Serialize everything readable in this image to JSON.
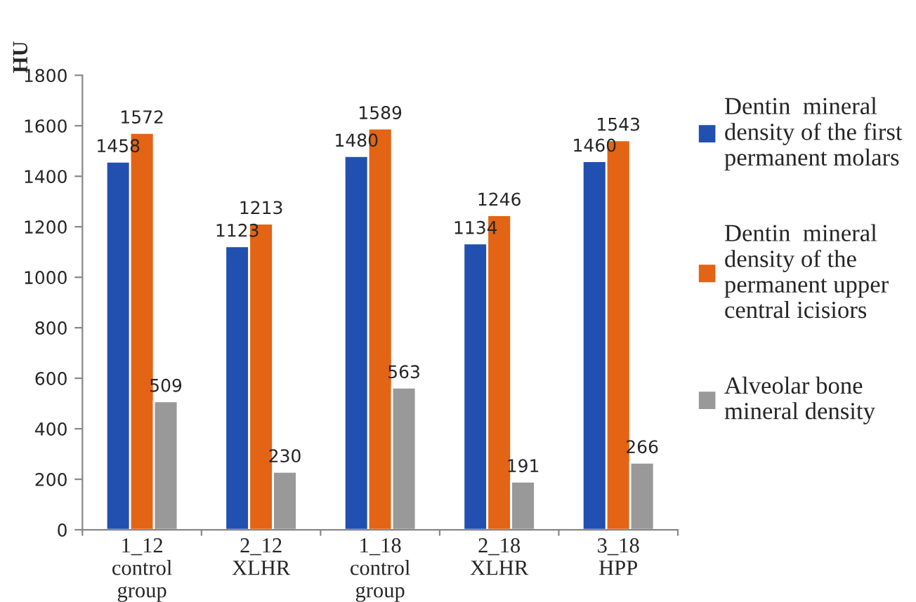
{
  "chart_data": {
    "type": "bar",
    "ylabel": "HU",
    "categories": [
      "1_12 control group",
      "2_12 XLHR",
      "1_18 control group",
      "2_18 XLHR",
      "3_18 HPP"
    ],
    "series": [
      {
        "name": "Dentin  mineral density of the first permanent molars",
        "color": "#2150b0",
        "values": [
          1458,
          1123,
          1480,
          1134,
          1460
        ]
      },
      {
        "name": "Dentin  mineral density of the permanent upper central icisiors",
        "color": "#e36414",
        "values": [
          1572,
          1213,
          1589,
          1246,
          1543
        ]
      },
      {
        "name": "Alveolar bone mineral density",
        "color": "#999999",
        "values": [
          509,
          230,
          563,
          191,
          266
        ]
      }
    ],
    "ylim": [
      0,
      1800
    ],
    "yticks": [
      0,
      200,
      400,
      600,
      800,
      1000,
      1200,
      1400,
      1600,
      1800
    ],
    "data_labels": true,
    "grid": false,
    "legend": "right"
  }
}
